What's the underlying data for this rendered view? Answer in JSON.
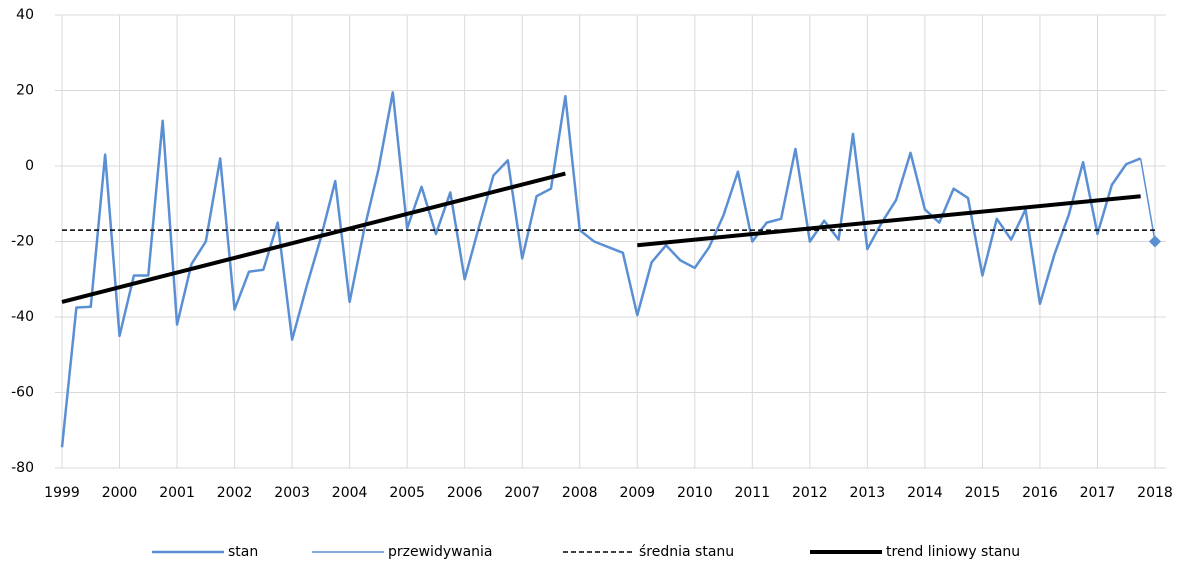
{
  "chart_data": {
    "type": "line",
    "xlim": [
      1999,
      2018
    ],
    "xticks": [
      1999,
      2000,
      2001,
      2002,
      2003,
      2004,
      2005,
      2006,
      2007,
      2008,
      2009,
      2010,
      2011,
      2012,
      2013,
      2014,
      2015,
      2016,
      2017,
      2018
    ],
    "ylim": [
      -80,
      40
    ],
    "yticks": [
      -80,
      -60,
      -40,
      -20,
      0,
      20,
      40
    ],
    "grid": true,
    "legend": "bottom",
    "series": [
      {
        "name": "stan",
        "color": "#5b8fd4",
        "x": [
          1999,
          1999.25,
          1999.5,
          1999.75,
          2000,
          2000.25,
          2000.5,
          2000.75,
          2001,
          2001.25,
          2001.5,
          2001.75,
          2002,
          2002.25,
          2002.5,
          2002.75,
          2003,
          2003.25,
          2003.5,
          2003.75,
          2004,
          2004.25,
          2004.5,
          2004.75,
          2005,
          2005.25,
          2005.5,
          2005.75,
          2006,
          2006.25,
          2006.5,
          2006.75,
          2007,
          2007.25,
          2007.5,
          2007.75,
          2008,
          2008.25,
          2008.5,
          2008.75,
          2009,
          2009.25,
          2009.5,
          2009.75,
          2010,
          2010.25,
          2010.5,
          2010.75,
          2011,
          2011.25,
          2011.5,
          2011.75,
          2012,
          2012.25,
          2012.5,
          2012.75,
          2013,
          2013.25,
          2013.5,
          2013.75,
          2014,
          2014.25,
          2014.5,
          2014.75,
          2015,
          2015.25,
          2015.5,
          2015.75,
          2016,
          2016.25,
          2016.5,
          2016.75,
          2017,
          2017.25,
          2017.5,
          2017.75
        ],
        "values": [
          -74.5,
          -37.5,
          -37.3,
          3,
          -45,
          -29,
          -29,
          12,
          -42,
          -26,
          -20,
          2,
          -38,
          -28,
          -27.5,
          -15,
          -46,
          -32,
          -19,
          -4,
          -36,
          -17,
          -1,
          19.5,
          -16.5,
          -5.5,
          -18,
          -7,
          -30,
          -16,
          -2.5,
          1.5,
          -24.5,
          -8,
          -6,
          18.5,
          -17,
          -20,
          -21.5,
          -23,
          -39.5,
          -25.5,
          -21,
          -25,
          -27,
          -21.5,
          -13,
          -1.5,
          -20,
          -15,
          -14,
          4.5,
          -20,
          -14.5,
          -19.5,
          8.5,
          -22,
          -15,
          -9,
          3.5,
          -11.5,
          -15,
          -6,
          -8.5,
          -29,
          -14,
          -19.5,
          -11.5,
          -36.5,
          -23.5,
          -13,
          1,
          -18,
          -5,
          0.5,
          2
        ]
      },
      {
        "name": "przewidywania",
        "color": "#5b8fd4",
        "marker": "diamond",
        "x": [
          2017.75,
          2018
        ],
        "values": [
          2,
          -20
        ]
      },
      {
        "name": "średnia stanu",
        "color": "#000000",
        "dashed": true,
        "x": [
          1999,
          2018
        ],
        "values": [
          -17,
          -17
        ]
      },
      {
        "name": "trend liniowy stanu",
        "color": "#000000",
        "x": [
          1999,
          2007.75,
          2008,
          2009,
          2017.75
        ],
        "values": [
          -36,
          -2,
          null,
          -21,
          -8
        ]
      }
    ]
  }
}
